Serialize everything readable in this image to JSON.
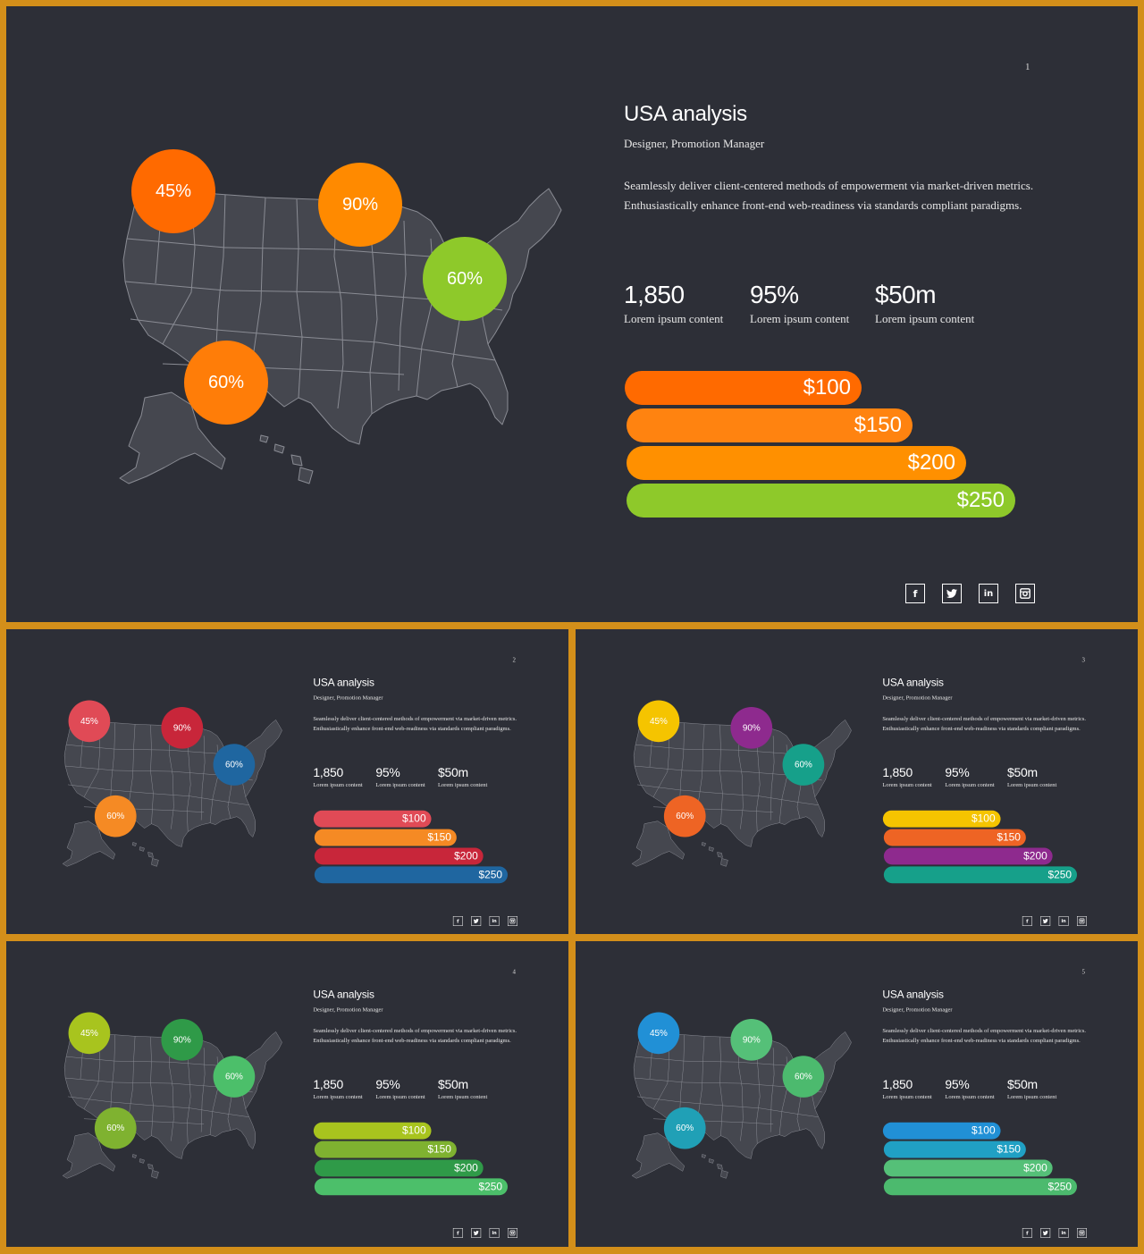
{
  "content": {
    "title": "USA analysis",
    "subtitle": "Designer, Promotion Manager",
    "body": "Seamlessly deliver client-centered methods of empowerment via market-driven metrics. Enthusiastically enhance front-end web-readiness via standards compliant paradigms.",
    "stats": [
      {
        "value": "1,850",
        "label": "Lorem ipsum content"
      },
      {
        "value": "95%",
        "label": "Lorem ipsum content"
      },
      {
        "value": "$50m",
        "label": "Lorem ipsum content"
      }
    ],
    "bars": [
      "$100",
      "$150",
      "$200",
      "$250"
    ],
    "bubbles": [
      "45%",
      "90%",
      "60%",
      "60%"
    ],
    "social_icons": [
      "facebook-icon",
      "twitter-icon",
      "linkedin-icon",
      "instagram-icon"
    ]
  },
  "slides": [
    {
      "page": "1",
      "colors": {
        "b1": "#ff6a00",
        "b2": "#ff8a00",
        "b3": "#8ec92a",
        "b4": "#ff7d08",
        "bar1": "#ff6a00",
        "bar2": "#ff8310",
        "bar3": "#ff9000",
        "bar4": "#8ec92a"
      }
    },
    {
      "page": "2",
      "colors": {
        "b1": "#e04a56",
        "b2": "#c8263a",
        "b3": "#1f66a0",
        "b4": "#f58a24",
        "bar1": "#e04a56",
        "bar2": "#f58a24",
        "bar3": "#c8263a",
        "bar4": "#1f66a0"
      }
    },
    {
      "page": "3",
      "colors": {
        "b1": "#f5c400",
        "b2": "#8e2a8e",
        "b3": "#16a08a",
        "b4": "#ee6424",
        "bar1": "#f5c400",
        "bar2": "#ee6424",
        "bar3": "#8e2a8e",
        "bar4": "#16a08a"
      }
    },
    {
      "page": "4",
      "colors": {
        "b1": "#a8c41e",
        "b2": "#2f9a48",
        "b3": "#4cbf6a",
        "b4": "#7fb230",
        "bar1": "#a8c41e",
        "bar2": "#7fb230",
        "bar3": "#2f9a48",
        "bar4": "#4cbf6a"
      }
    },
    {
      "page": "5",
      "colors": {
        "b1": "#2190d6",
        "b2": "#55c078",
        "b3": "#4cba6e",
        "b4": "#20a0b6",
        "bar1": "#2190d6",
        "bar2": "#20a0c4",
        "bar3": "#55c078",
        "bar4": "#4cba6e"
      }
    }
  ]
}
